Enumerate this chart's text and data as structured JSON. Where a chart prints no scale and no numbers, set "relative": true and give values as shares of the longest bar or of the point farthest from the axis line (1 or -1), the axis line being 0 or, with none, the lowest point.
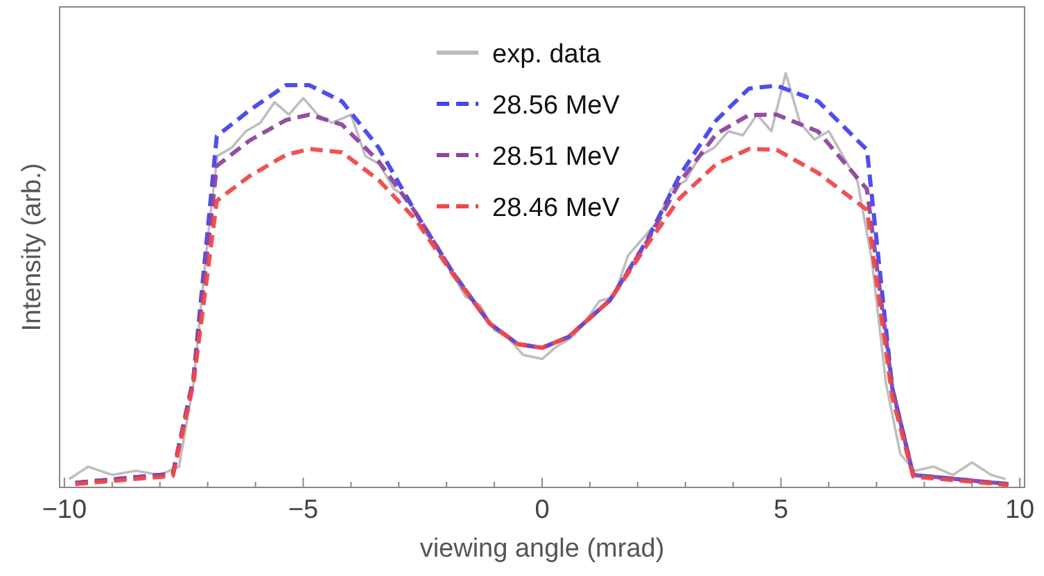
{
  "chart_data": {
    "type": "line",
    "xlabel": "viewing angle (mrad)",
    "ylabel": "Intensity (arb.)",
    "relative": true,
    "xlim": [
      -10.1,
      10.1
    ],
    "xticks": [
      -10,
      {
        "value": -9,
        "label": null
      },
      {
        "value": -8,
        "label": null
      },
      {
        "value": -7,
        "label": null
      },
      {
        "value": -6,
        "label": null
      },
      {
        "value": -5,
        "label": "−5"
      },
      {
        "value": -4,
        "label": null
      },
      {
        "value": -3,
        "label": null
      },
      {
        "value": -2,
        "label": null
      },
      {
        "value": -1,
        "label": null
      },
      0,
      {
        "value": 1,
        "label": null
      },
      {
        "value": 2,
        "label": null
      },
      {
        "value": 3,
        "label": null
      },
      {
        "value": 4,
        "label": null
      },
      5,
      {
        "value": 6,
        "label": null
      },
      {
        "value": 7,
        "label": null
      },
      {
        "value": 8,
        "label": null
      },
      {
        "value": 9,
        "label": null
      },
      10
    ],
    "legend": "top",
    "grid": false,
    "series": [
      {
        "name": "exp. data",
        "color": "#bbbbbb",
        "line_style": "solid",
        "x": [
          -9.9,
          -9.5,
          -9.0,
          -8.5,
          -8.0,
          -7.6,
          -7.3,
          -7.0,
          -6.8,
          -6.5,
          -6.2,
          -5.9,
          -5.6,
          -5.3,
          -5.0,
          -4.7,
          -4.4,
          -4.0,
          -3.7,
          -3.4,
          -3.1,
          -2.8,
          -2.5,
          -2.2,
          -1.9,
          -1.6,
          -1.3,
          -1.0,
          -0.7,
          -0.4,
          0,
          0.3,
          0.6,
          0.9,
          1.2,
          1.5,
          1.8,
          2.1,
          2.4,
          2.7,
          3.0,
          3.3,
          3.6,
          3.9,
          4.2,
          4.5,
          4.8,
          5.1,
          5.4,
          5.7,
          6.0,
          6.3,
          6.6,
          6.9,
          7.2,
          7.5,
          7.8,
          8.2,
          8.6,
          9.0,
          9.4,
          9.7
        ],
        "values": [
          0.02,
          0.05,
          0.03,
          0.04,
          0.03,
          0.05,
          0.25,
          0.6,
          0.8,
          0.82,
          0.86,
          0.88,
          0.93,
          0.9,
          0.94,
          0.9,
          0.88,
          0.9,
          0.8,
          0.78,
          0.72,
          0.7,
          0.62,
          0.58,
          0.52,
          0.46,
          0.44,
          0.38,
          0.36,
          0.32,
          0.31,
          0.34,
          0.36,
          0.4,
          0.45,
          0.46,
          0.56,
          0.6,
          0.64,
          0.72,
          0.74,
          0.8,
          0.82,
          0.86,
          0.85,
          0.9,
          0.86,
          1.0,
          0.88,
          0.84,
          0.86,
          0.8,
          0.74,
          0.55,
          0.25,
          0.08,
          0.04,
          0.05,
          0.03,
          0.06,
          0.03,
          0.02
        ]
      },
      {
        "name": "28.56 MeV",
        "color": "#4444ee",
        "line_style": "dashed",
        "x": [
          -9.77,
          -7.73,
          -7.3,
          -6.81,
          -6.13,
          -5.36,
          -4.87,
          -4.19,
          -3.42,
          -2.65,
          -1.87,
          -1.1,
          -0.51,
          0,
          0.55,
          1.42,
          2.2,
          2.88,
          3.65,
          4.33,
          4.91,
          5.78,
          6.8,
          7.33,
          7.77,
          9.76
        ],
        "values": [
          0.011,
          0.033,
          0.263,
          0.848,
          0.91,
          0.971,
          0.971,
          0.932,
          0.82,
          0.664,
          0.519,
          0.396,
          0.346,
          0.337,
          0.363,
          0.452,
          0.597,
          0.753,
          0.887,
          0.963,
          0.97,
          0.932,
          0.815,
          0.24,
          0.03,
          0.008
        ]
      },
      {
        "name": "28.51 MeV",
        "color": "#8e44a0",
        "line_style": "dashed",
        "x": [
          -9.77,
          -7.73,
          -7.3,
          -6.81,
          -6.13,
          -5.36,
          -4.87,
          -4.19,
          -3.42,
          -2.65,
          -1.87,
          -1.1,
          -0.51,
          0,
          0.55,
          1.42,
          2.2,
          2.88,
          3.65,
          4.33,
          4.91,
          5.78,
          6.8,
          7.33,
          7.77,
          9.76
        ],
        "values": [
          0.011,
          0.033,
          0.26,
          0.776,
          0.837,
          0.887,
          0.9,
          0.876,
          0.787,
          0.664,
          0.519,
          0.396,
          0.346,
          0.337,
          0.363,
          0.452,
          0.594,
          0.737,
          0.854,
          0.899,
          0.9,
          0.859,
          0.72,
          0.24,
          0.03,
          0.008
        ]
      },
      {
        "name": "28.46 MeV",
        "color": "#f04848",
        "line_style": "dashed",
        "x": [
          -9.77,
          -7.73,
          -7.3,
          -6.81,
          -6.13,
          -5.36,
          -4.87,
          -4.19,
          -3.42,
          -2.65,
          -1.87,
          -1.1,
          -0.51,
          0,
          0.55,
          1.42,
          2.2,
          2.88,
          3.65,
          4.33,
          4.91,
          5.78,
          6.8,
          7.33,
          7.77,
          9.76
        ],
        "values": [
          0.008,
          0.028,
          0.25,
          0.692,
          0.751,
          0.803,
          0.817,
          0.809,
          0.742,
          0.647,
          0.515,
          0.396,
          0.346,
          0.337,
          0.363,
          0.452,
          0.586,
          0.698,
          0.781,
          0.817,
          0.815,
          0.759,
          0.67,
          0.218,
          0.026,
          0.006
        ]
      }
    ]
  }
}
